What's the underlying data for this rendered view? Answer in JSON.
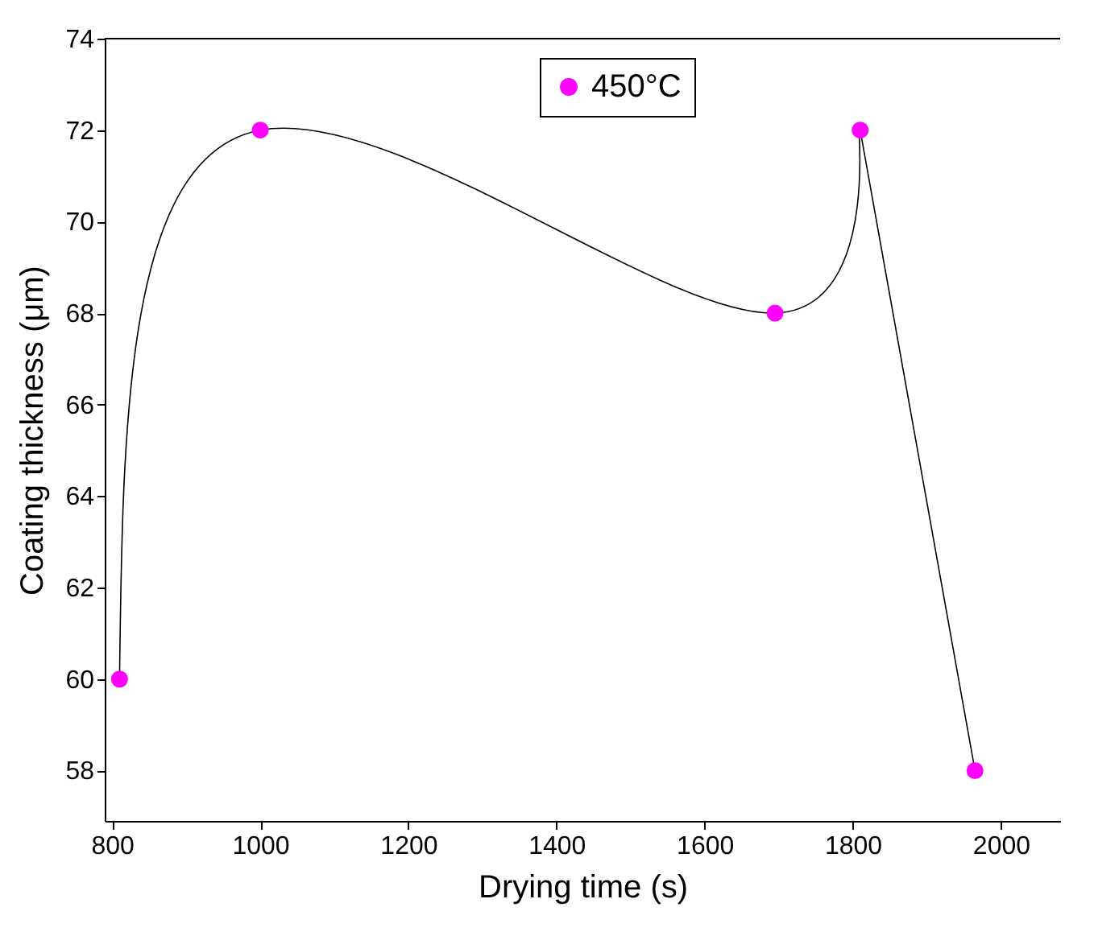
{
  "chart_data": {
    "type": "line",
    "xlabel": "Drying time (s)",
    "ylabel": "Coating thickness (μm)",
    "x": [
      810,
      1000,
      1695,
      1810,
      1965
    ],
    "series": [
      {
        "name": "450°C",
        "color": "#ff00ff",
        "values": [
          60,
          72,
          68,
          72,
          58
        ]
      }
    ],
    "xlim": [
      790,
      2080
    ],
    "xticks": [
      800,
      1000,
      1200,
      1400,
      1600,
      1800,
      2000
    ],
    "ylim": [
      56.9,
      74
    ],
    "yticks": [
      58,
      60,
      62,
      64,
      66,
      68,
      70,
      72,
      74
    ],
    "legend": "top",
    "marker": "circle",
    "line_style": "solid",
    "grid": false
  }
}
